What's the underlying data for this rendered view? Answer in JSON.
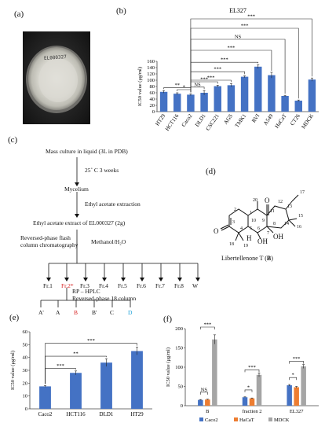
{
  "panels": {
    "a": {
      "label": "(a)",
      "plate_label": "EL000327"
    },
    "b": {
      "label": "(b)"
    },
    "c": {
      "label": "(c)"
    },
    "d": {
      "label": "(d)"
    },
    "e": {
      "label": "(e)"
    },
    "f": {
      "label": "(f)"
    }
  },
  "flowchart": {
    "step1": "Mass culture in liquid (3L in PDB)",
    "step1_cond": "25˚ C  3 weeks",
    "step2": "Mycelium",
    "step2_cond": "Ethyl acetate extraction",
    "step3": "Ethyl acetate extract of EL000327 (2g)",
    "method_left_1": "Reversed-phase flash",
    "method_left_2": "column chromatography",
    "method_right": "Methanol/H₂O",
    "fractions": [
      "Fr.1",
      "Fr.2*",
      "Fr.3",
      "Fr.4",
      "Fr.5",
      "Fr.6",
      "Fr.7",
      "Fr.8",
      "W"
    ],
    "fraction_colors": [
      "#111111",
      "#d62020",
      "#111111",
      "#111111",
      "#111111",
      "#111111",
      "#111111",
      "#111111",
      "#111111"
    ],
    "hplc_1": "RP – HPLC",
    "hplc_2": "Reversed-phase  18 column",
    "compounds": [
      "A'",
      "A",
      "B",
      "B'",
      "C",
      "D"
    ],
    "compound_colors": [
      "#111111",
      "#111111",
      "#d62020",
      "#111111",
      "#111111",
      "#1aa0d8"
    ]
  },
  "structure": {
    "name_prefix": "Libertellenone T (",
    "name_bold": "B",
    "name_suffix": ")",
    "atom_labels": [
      "17",
      "12",
      "20",
      "15",
      "11",
      "13",
      "14",
      "16",
      "1",
      "10",
      "9",
      "8",
      "2",
      "3",
      "4",
      "5",
      "6",
      "7",
      "18",
      "19",
      "O",
      "O",
      "OH",
      "OH",
      "H"
    ]
  },
  "chart_data": [
    {
      "id": "b",
      "type": "bar",
      "title": "EL327",
      "ylabel": "IC50 value (μg/ml)",
      "ylim": [
        0,
        160
      ],
      "yticks": [
        0,
        20,
        40,
        60,
        80,
        100,
        120,
        140,
        160
      ],
      "categories": [
        "HT29",
        "HCT116",
        "Caco2",
        "DLD1",
        "CSC221",
        "AGS",
        "TMK1",
        "RVI",
        "A549",
        "HaCaT",
        "CT26",
        "MDCK"
      ],
      "values": [
        63,
        57,
        54,
        60,
        81,
        84,
        111,
        143,
        116,
        50,
        35,
        102
      ],
      "errors": [
        4,
        3,
        3,
        7,
        3,
        5,
        3,
        6,
        9,
        2,
        2,
        5
      ],
      "bar_color": "#4472c4",
      "significance": [
        {
          "label": "**",
          "from": "HT29",
          "to": "Caco2"
        },
        {
          "label": "*",
          "from": "HCT116",
          "to": "Caco2"
        },
        {
          "label": "NS",
          "from": "Caco2",
          "to": "DLD1"
        },
        {
          "label": "***",
          "from": "Caco2",
          "to": "CSC221"
        },
        {
          "label": "***",
          "from": "Caco2",
          "to": "AGS"
        },
        {
          "label": "***",
          "from": "Caco2",
          "to": "TMK1"
        },
        {
          "label": "***",
          "from": "Caco2",
          "to": "RVI"
        },
        {
          "label": "***",
          "from": "Caco2",
          "to": "A549"
        },
        {
          "label": "NS",
          "from": "Caco2",
          "to": "HaCaT"
        },
        {
          "label": "***",
          "from": "Caco2",
          "to": "CT26"
        },
        {
          "label": "***",
          "from": "Caco2",
          "to": "MDCK"
        }
      ]
    },
    {
      "id": "e",
      "type": "bar",
      "ylabel": "IC50 value (μg/ml)",
      "ylim": [
        0,
        60
      ],
      "yticks": [
        0,
        10,
        20,
        30,
        40,
        50,
        60
      ],
      "categories": [
        "Caco2",
        "HCT116",
        "DLD1",
        "HT29"
      ],
      "values": [
        17.5,
        28,
        36,
        45
      ],
      "errors": [
        0.6,
        1.5,
        3,
        3
      ],
      "bar_color": "#4472c4",
      "significance": [
        {
          "label": "***",
          "from": "Caco2",
          "to": "HCT116"
        },
        {
          "label": "**",
          "from": "Caco2",
          "to": "DLD1"
        },
        {
          "label": "***",
          "from": "Caco2",
          "to": "HT29"
        }
      ]
    },
    {
      "id": "f",
      "type": "bar",
      "ylabel": "IC50 value (μg/ml)",
      "ylim": [
        0,
        200
      ],
      "yticks": [
        0,
        50,
        100,
        150,
        200
      ],
      "categories": [
        "B",
        "fraction 2",
        "EL327"
      ],
      "series": [
        {
          "name": "Caco2",
          "color": "#4472c4",
          "values": [
            15,
            22,
            53
          ],
          "errors": [
            1,
            1,
            2
          ]
        },
        {
          "name": "HaCaT",
          "color": "#ed7d31",
          "values": [
            16,
            19,
            48
          ],
          "errors": [
            1,
            1,
            2
          ]
        },
        {
          "name": "MDCK",
          "color": "#a5a5a5",
          "values": [
            172,
            80,
            102
          ],
          "errors": [
            12,
            5,
            5
          ]
        }
      ],
      "legend": "bottom",
      "significance": [
        {
          "label": "NS",
          "category": "B",
          "from": 0,
          "to": 1
        },
        {
          "label": "***",
          "category": "B",
          "from": 0,
          "to": 2
        },
        {
          "label": "*",
          "category": "fraction 2",
          "from": 0,
          "to": 1
        },
        {
          "label": "***",
          "category": "fraction 2",
          "from": 0,
          "to": 2
        },
        {
          "label": "*",
          "category": "EL327",
          "from": 0,
          "to": 1
        },
        {
          "label": "***",
          "category": "EL327",
          "from": 0,
          "to": 2
        }
      ]
    }
  ]
}
